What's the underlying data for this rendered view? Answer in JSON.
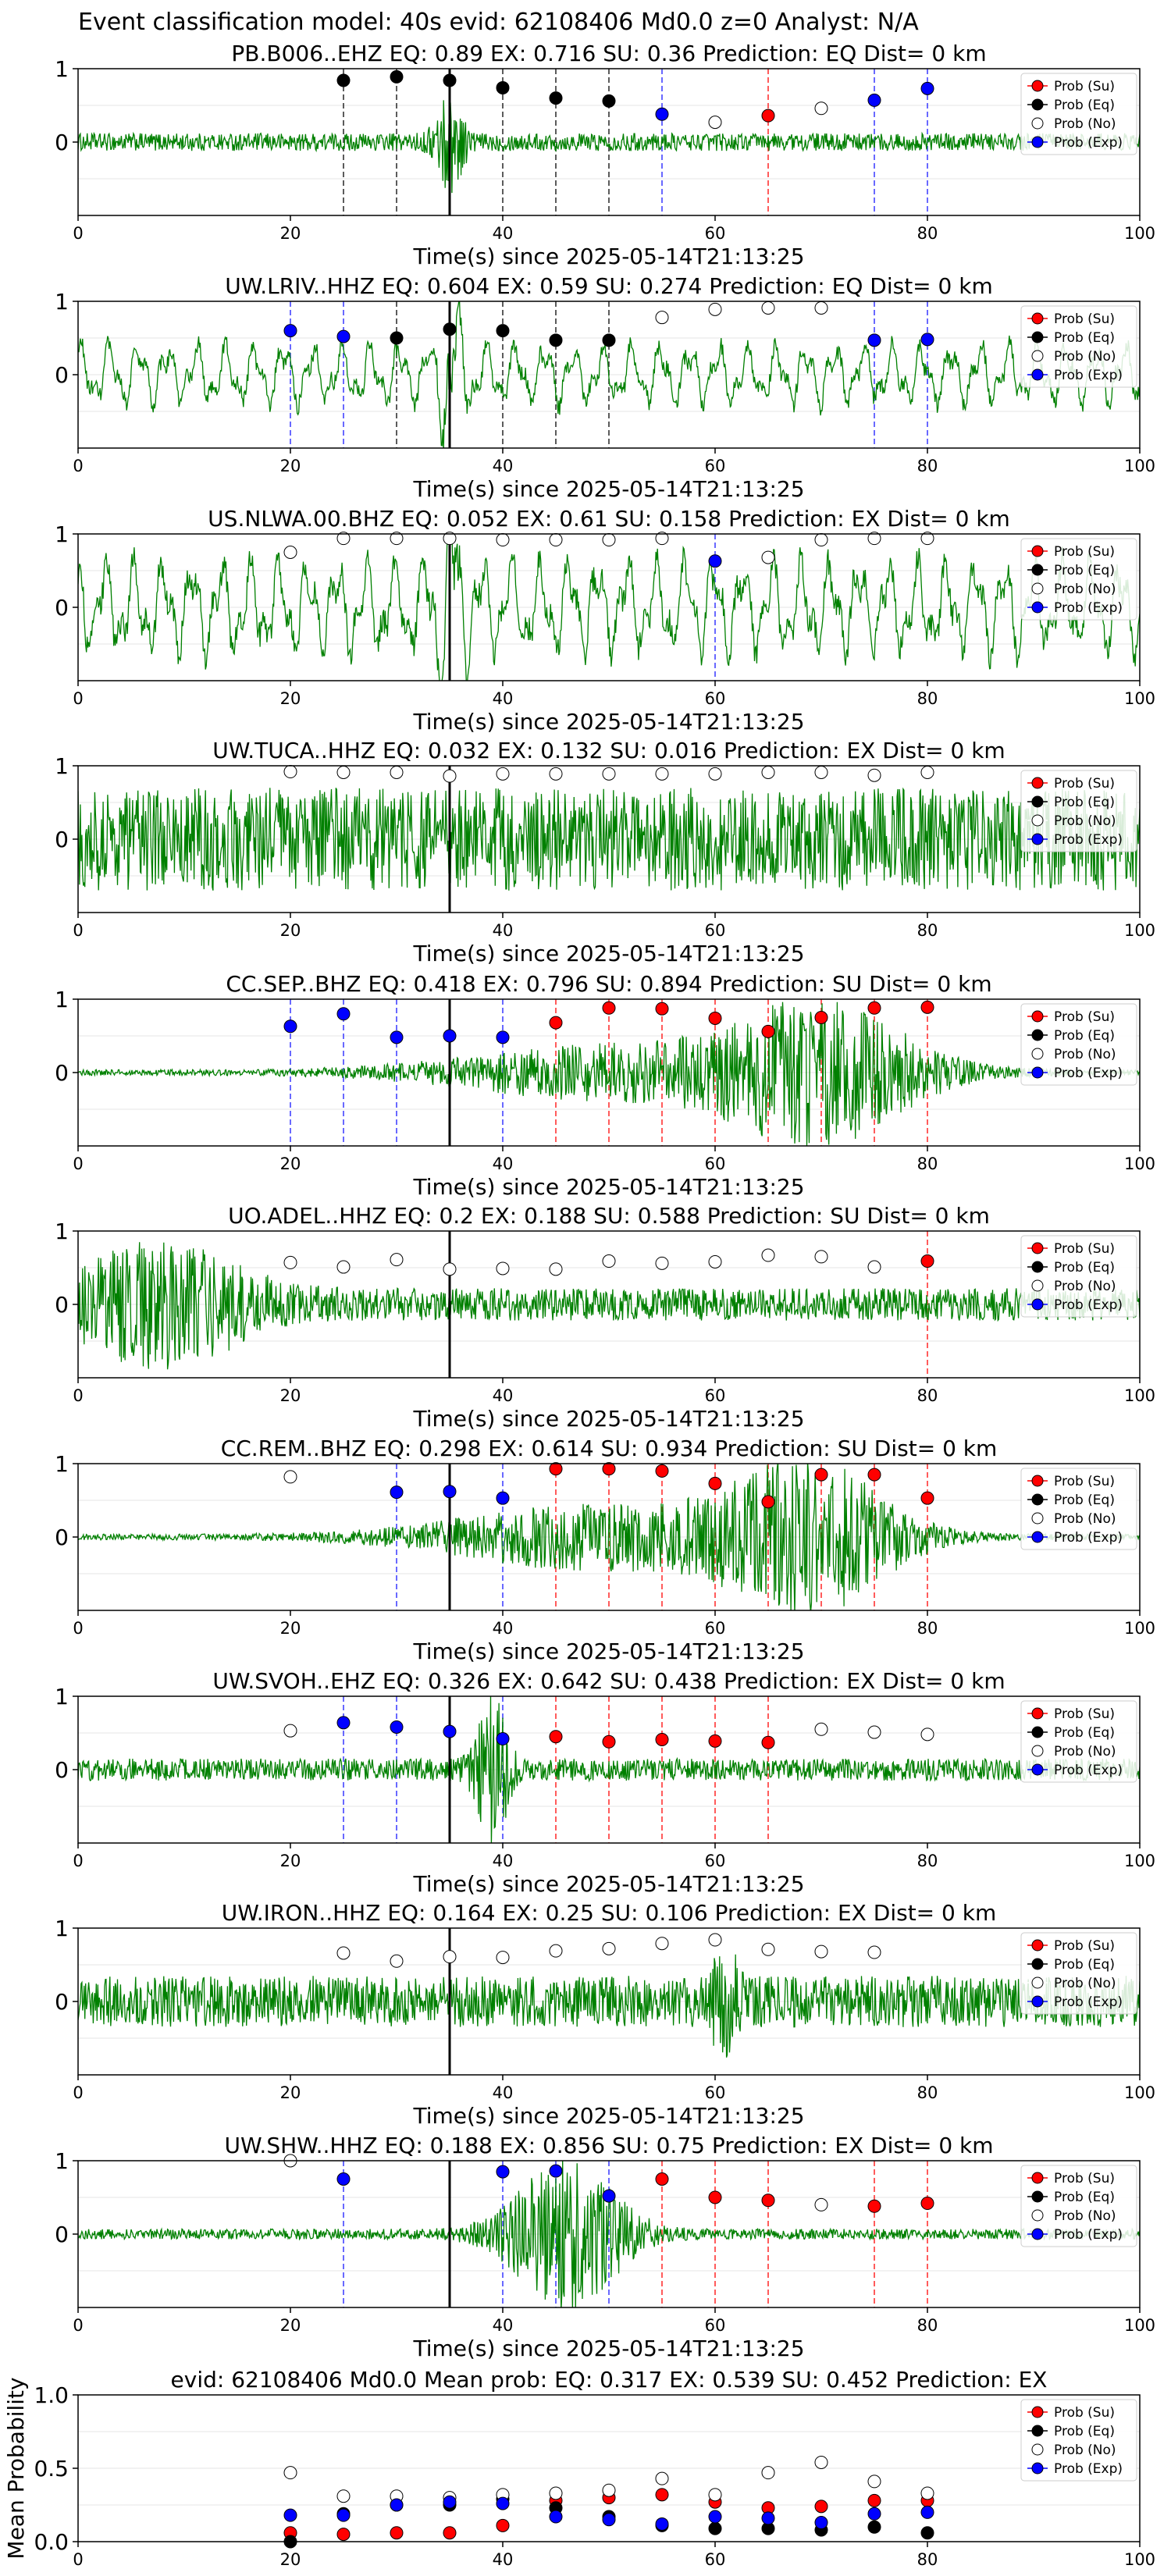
{
  "figure_title": "Event classification model: 40s evid: 62108406 Md0.0 z=0 Analyst: N/A",
  "legend_labels": [
    "Prob (Su)",
    "Prob (Eq)",
    "Prob (No)",
    "Prob (Exp)"
  ],
  "colors": {
    "su": "#ff0000",
    "eq": "#000000",
    "no": "#ffffff",
    "exp": "#0000ff",
    "trace": "#008000"
  },
  "chart_data": [
    {
      "type": "line",
      "station": "PB.B006..EHZ",
      "title": "PB.B006..EHZ   EQ: 0.89  EX: 0.716  SU: 0.36   Prediction: EQ    Dist= 0 km",
      "xlabel": "Time(s) since 2025-05-14T21:13:25",
      "xlim": [
        0,
        100
      ],
      "ylim": [
        -1,
        1
      ],
      "xticks": [
        "0",
        "20",
        "40",
        "60",
        "80",
        "100"
      ],
      "yticks": [
        "0",
        "1"
      ],
      "trace": {
        "style": "small",
        "amp": 0.12,
        "bursts": [
          [
            35,
            1,
            0.6
          ]
        ]
      },
      "markers": [
        {
          "x": 25,
          "y": 0.84,
          "cls": "eq"
        },
        {
          "x": 30,
          "y": 0.89,
          "cls": "eq"
        },
        {
          "x": 35,
          "y": 0.84,
          "cls": "eq"
        },
        {
          "x": 40,
          "y": 0.74,
          "cls": "eq"
        },
        {
          "x": 45,
          "y": 0.6,
          "cls": "eq"
        },
        {
          "x": 50,
          "y": 0.56,
          "cls": "eq"
        },
        {
          "x": 55,
          "y": 0.38,
          "cls": "exp"
        },
        {
          "x": 60,
          "y": 0.27,
          "cls": "no"
        },
        {
          "x": 65,
          "y": 0.36,
          "cls": "su"
        },
        {
          "x": 70,
          "y": 0.46,
          "cls": "no"
        },
        {
          "x": 75,
          "y": 0.57,
          "cls": "exp"
        },
        {
          "x": 80,
          "y": 0.73,
          "cls": "exp"
        }
      ]
    },
    {
      "type": "line",
      "station": "UW.LRIV..HHZ",
      "title": "UW.LRIV..HHZ   EQ: 0.604  EX: 0.59  SU: 0.274   Prediction: EQ    Dist= 0 km",
      "xlabel": "Time(s) since 2025-05-14T21:13:25",
      "xlim": [
        0,
        100
      ],
      "ylim": [
        -1,
        1
      ],
      "xticks": [
        "0",
        "20",
        "40",
        "60",
        "80",
        "100"
      ],
      "yticks": [
        "0",
        "1"
      ],
      "trace": {
        "style": "wavy",
        "amp": 0.45,
        "bursts": [
          [
            35,
            1,
            0.8
          ]
        ]
      },
      "markers": [
        {
          "x": 20,
          "y": 0.6,
          "cls": "exp"
        },
        {
          "x": 25,
          "y": 0.52,
          "cls": "exp"
        },
        {
          "x": 30,
          "y": 0.5,
          "cls": "eq"
        },
        {
          "x": 35,
          "y": 0.62,
          "cls": "eq"
        },
        {
          "x": 40,
          "y": 0.6,
          "cls": "eq"
        },
        {
          "x": 45,
          "y": 0.47,
          "cls": "eq"
        },
        {
          "x": 50,
          "y": 0.47,
          "cls": "eq"
        },
        {
          "x": 55,
          "y": 0.78,
          "cls": "no"
        },
        {
          "x": 60,
          "y": 0.89,
          "cls": "no"
        },
        {
          "x": 65,
          "y": 0.91,
          "cls": "no"
        },
        {
          "x": 70,
          "y": 0.91,
          "cls": "no"
        },
        {
          "x": 75,
          "y": 0.47,
          "cls": "exp"
        },
        {
          "x": 80,
          "y": 0.48,
          "cls": "exp"
        }
      ]
    },
    {
      "type": "line",
      "station": "US.NLWA.00.BHZ",
      "title": "US.NLWA.00.BHZ   EQ: 0.052  EX: 0.61  SU: 0.158   Prediction: EX    Dist= 0 km",
      "xlabel": "Time(s) since 2025-05-14T21:13:25",
      "xlim": [
        0,
        100
      ],
      "ylim": [
        -1,
        1
      ],
      "xticks": [
        "0",
        "20",
        "40",
        "60",
        "80",
        "100"
      ],
      "yticks": [
        "0",
        "1"
      ],
      "trace": {
        "style": "wavy",
        "amp": 0.7,
        "bursts": [
          [
            35,
            1,
            1.0
          ]
        ]
      },
      "markers": [
        {
          "x": 20,
          "y": 0.75,
          "cls": "no"
        },
        {
          "x": 25,
          "y": 0.94,
          "cls": "no"
        },
        {
          "x": 30,
          "y": 0.94,
          "cls": "no"
        },
        {
          "x": 35,
          "y": 0.94,
          "cls": "no"
        },
        {
          "x": 40,
          "y": 0.92,
          "cls": "no"
        },
        {
          "x": 45,
          "y": 0.92,
          "cls": "no"
        },
        {
          "x": 50,
          "y": 0.92,
          "cls": "no"
        },
        {
          "x": 55,
          "y": 0.94,
          "cls": "no"
        },
        {
          "x": 60,
          "y": 0.63,
          "cls": "exp"
        },
        {
          "x": 65,
          "y": 0.68,
          "cls": "no"
        },
        {
          "x": 70,
          "y": 0.92,
          "cls": "no"
        },
        {
          "x": 75,
          "y": 0.94,
          "cls": "no"
        },
        {
          "x": 80,
          "y": 0.94,
          "cls": "no"
        }
      ]
    },
    {
      "type": "line",
      "station": "UW.TUCA..HHZ",
      "title": "UW.TUCA..HHZ   EQ: 0.032  EX: 0.132  SU: 0.016   Prediction: EX    Dist= 0 km",
      "xlabel": "Time(s) since 2025-05-14T21:13:25",
      "xlim": [
        0,
        100
      ],
      "ylim": [
        -1,
        1
      ],
      "xticks": [
        "0",
        "20",
        "40",
        "60",
        "80",
        "100"
      ],
      "yticks": [
        "0",
        "1"
      ],
      "trace": {
        "style": "noisy",
        "amp": 0.7,
        "bursts": []
      },
      "markers": [
        {
          "x": 20,
          "y": 0.92,
          "cls": "no"
        },
        {
          "x": 25,
          "y": 0.91,
          "cls": "no"
        },
        {
          "x": 30,
          "y": 0.91,
          "cls": "no"
        },
        {
          "x": 35,
          "y": 0.86,
          "cls": "no"
        },
        {
          "x": 40,
          "y": 0.89,
          "cls": "no"
        },
        {
          "x": 45,
          "y": 0.89,
          "cls": "no"
        },
        {
          "x": 50,
          "y": 0.89,
          "cls": "no"
        },
        {
          "x": 55,
          "y": 0.89,
          "cls": "no"
        },
        {
          "x": 60,
          "y": 0.89,
          "cls": "no"
        },
        {
          "x": 65,
          "y": 0.91,
          "cls": "no"
        },
        {
          "x": 70,
          "y": 0.91,
          "cls": "no"
        },
        {
          "x": 75,
          "y": 0.87,
          "cls": "no"
        },
        {
          "x": 80,
          "y": 0.91,
          "cls": "no"
        }
      ]
    },
    {
      "type": "line",
      "station": "CC.SEP..BHZ",
      "title": "CC.SEP..BHZ   EQ: 0.418  EX: 0.796  SU: 0.894   Prediction: SU    Dist= 0 km",
      "xlabel": "Time(s) since 2025-05-14T21:13:25",
      "xlim": [
        0,
        100
      ],
      "ylim": [
        -1,
        1
      ],
      "xticks": [
        "0",
        "20",
        "40",
        "60",
        "80",
        "100"
      ],
      "yticks": [
        "0",
        "1"
      ],
      "trace": {
        "style": "small",
        "amp": 0.04,
        "bursts": [
          [
            50,
            12,
            0.35
          ],
          [
            70,
            7,
            0.9
          ]
        ]
      },
      "markers": [
        {
          "x": 20,
          "y": 0.63,
          "cls": "exp"
        },
        {
          "x": 25,
          "y": 0.8,
          "cls": "exp"
        },
        {
          "x": 30,
          "y": 0.48,
          "cls": "exp"
        },
        {
          "x": 35,
          "y": 0.5,
          "cls": "exp"
        },
        {
          "x": 40,
          "y": 0.48,
          "cls": "exp"
        },
        {
          "x": 45,
          "y": 0.68,
          "cls": "su"
        },
        {
          "x": 50,
          "y": 0.88,
          "cls": "su"
        },
        {
          "x": 55,
          "y": 0.87,
          "cls": "su"
        },
        {
          "x": 60,
          "y": 0.74,
          "cls": "su"
        },
        {
          "x": 65,
          "y": 0.56,
          "cls": "su"
        },
        {
          "x": 70,
          "y": 0.75,
          "cls": "su"
        },
        {
          "x": 75,
          "y": 0.88,
          "cls": "su"
        },
        {
          "x": 80,
          "y": 0.89,
          "cls": "su"
        }
      ]
    },
    {
      "type": "line",
      "station": "UO.ADEL..HHZ",
      "title": "UO.ADEL..HHZ   EQ: 0.2  EX: 0.188  SU: 0.588   Prediction: SU    Dist= 0 km",
      "xlabel": "Time(s) since 2025-05-14T21:13:25",
      "xlim": [
        0,
        100
      ],
      "ylim": [
        -1,
        1
      ],
      "xticks": [
        "0",
        "20",
        "40",
        "60",
        "80",
        "100"
      ],
      "yticks": [
        "0",
        "1"
      ],
      "trace": {
        "style": "noisy",
        "amp": 0.22,
        "bursts": [
          [
            8,
            6,
            0.7
          ]
        ]
      },
      "markers": [
        {
          "x": 20,
          "y": 0.57,
          "cls": "no"
        },
        {
          "x": 25,
          "y": 0.51,
          "cls": "no"
        },
        {
          "x": 30,
          "y": 0.61,
          "cls": "no"
        },
        {
          "x": 35,
          "y": 0.48,
          "cls": "no"
        },
        {
          "x": 40,
          "y": 0.49,
          "cls": "no"
        },
        {
          "x": 45,
          "y": 0.48,
          "cls": "no"
        },
        {
          "x": 50,
          "y": 0.59,
          "cls": "no"
        },
        {
          "x": 55,
          "y": 0.56,
          "cls": "no"
        },
        {
          "x": 60,
          "y": 0.58,
          "cls": "no"
        },
        {
          "x": 65,
          "y": 0.67,
          "cls": "no"
        },
        {
          "x": 70,
          "y": 0.65,
          "cls": "no"
        },
        {
          "x": 75,
          "y": 0.51,
          "cls": "no"
        },
        {
          "x": 80,
          "y": 0.59,
          "cls": "su"
        }
      ]
    },
    {
      "type": "line",
      "station": "CC.REM..BHZ",
      "title": "CC.REM..BHZ   EQ: 0.298  EX: 0.614  SU: 0.934   Prediction: SU    Dist= 0 km",
      "xlabel": "Time(s) since 2025-05-14T21:13:25",
      "xlim": [
        0,
        100
      ],
      "ylim": [
        -1,
        1
      ],
      "xticks": [
        "0",
        "20",
        "40",
        "60",
        "80",
        "100"
      ],
      "yticks": [
        "0",
        "1"
      ],
      "trace": {
        "style": "small",
        "amp": 0.04,
        "bursts": [
          [
            50,
            12,
            0.45
          ],
          [
            69,
            6,
            0.95
          ]
        ]
      },
      "markers": [
        {
          "x": 20,
          "y": 0.82,
          "cls": "no"
        },
        {
          "x": 30,
          "y": 0.61,
          "cls": "exp"
        },
        {
          "x": 35,
          "y": 0.62,
          "cls": "exp"
        },
        {
          "x": 40,
          "y": 0.53,
          "cls": "exp"
        },
        {
          "x": 45,
          "y": 0.93,
          "cls": "su"
        },
        {
          "x": 50,
          "y": 0.93,
          "cls": "su"
        },
        {
          "x": 55,
          "y": 0.9,
          "cls": "su"
        },
        {
          "x": 60,
          "y": 0.73,
          "cls": "su"
        },
        {
          "x": 65,
          "y": 0.48,
          "cls": "su"
        },
        {
          "x": 70,
          "y": 0.85,
          "cls": "su"
        },
        {
          "x": 75,
          "y": 0.85,
          "cls": "su"
        },
        {
          "x": 80,
          "y": 0.53,
          "cls": "su"
        }
      ]
    },
    {
      "type": "line",
      "station": "UW.SVOH..EHZ",
      "title": "UW.SVOH..EHZ   EQ: 0.326  EX: 0.642  SU: 0.438   Prediction: EX    Dist= 0 km",
      "xlabel": "Time(s) since 2025-05-14T21:13:25",
      "xlim": [
        0,
        100
      ],
      "ylim": [
        -1,
        1
      ],
      "xticks": [
        "0",
        "20",
        "40",
        "60",
        "80",
        "100"
      ],
      "yticks": [
        "0",
        "1"
      ],
      "trace": {
        "style": "noisy",
        "amp": 0.15,
        "bursts": [
          [
            39,
            1.2,
            0.9
          ]
        ]
      },
      "markers": [
        {
          "x": 20,
          "y": 0.53,
          "cls": "no"
        },
        {
          "x": 25,
          "y": 0.64,
          "cls": "exp"
        },
        {
          "x": 30,
          "y": 0.58,
          "cls": "exp"
        },
        {
          "x": 35,
          "y": 0.52,
          "cls": "exp"
        },
        {
          "x": 40,
          "y": 0.42,
          "cls": "exp"
        },
        {
          "x": 45,
          "y": 0.45,
          "cls": "su"
        },
        {
          "x": 50,
          "y": 0.38,
          "cls": "su"
        },
        {
          "x": 55,
          "y": 0.41,
          "cls": "su"
        },
        {
          "x": 60,
          "y": 0.39,
          "cls": "su"
        },
        {
          "x": 65,
          "y": 0.37,
          "cls": "su"
        },
        {
          "x": 70,
          "y": 0.55,
          "cls": "no"
        },
        {
          "x": 75,
          "y": 0.51,
          "cls": "no"
        },
        {
          "x": 80,
          "y": 0.48,
          "cls": "no"
        }
      ]
    },
    {
      "type": "line",
      "station": "UW.IRON..HHZ",
      "title": "UW.IRON..HHZ   EQ: 0.164  EX: 0.25  SU: 0.106   Prediction: EX    Dist= 0 km",
      "xlabel": "Time(s) since 2025-05-14T21:13:25",
      "xlim": [
        0,
        100
      ],
      "ylim": [
        -1,
        1
      ],
      "xticks": [
        "0",
        "20",
        "40",
        "60",
        "80",
        "100"
      ],
      "yticks": [
        "0",
        "1"
      ],
      "trace": {
        "style": "noisy",
        "amp": 0.35,
        "bursts": [
          [
            61,
            1,
            0.5
          ]
        ]
      },
      "markers": [
        {
          "x": 25,
          "y": 0.66,
          "cls": "no"
        },
        {
          "x": 30,
          "y": 0.55,
          "cls": "no"
        },
        {
          "x": 35,
          "y": 0.61,
          "cls": "no"
        },
        {
          "x": 40,
          "y": 0.6,
          "cls": "no"
        },
        {
          "x": 45,
          "y": 0.69,
          "cls": "no"
        },
        {
          "x": 50,
          "y": 0.72,
          "cls": "no"
        },
        {
          "x": 55,
          "y": 0.79,
          "cls": "no"
        },
        {
          "x": 60,
          "y": 0.84,
          "cls": "no"
        },
        {
          "x": 65,
          "y": 0.71,
          "cls": "no"
        },
        {
          "x": 70,
          "y": 0.68,
          "cls": "no"
        },
        {
          "x": 75,
          "y": 0.67,
          "cls": "no"
        }
      ]
    },
    {
      "type": "line",
      "station": "UW.SHW..HHZ",
      "title": "UW.SHW..HHZ   EQ: 0.188  EX: 0.856  SU: 0.75   Prediction: EX    Dist= 0 km",
      "xlabel": "Time(s) since 2025-05-14T21:13:25",
      "xlim": [
        0,
        100
      ],
      "ylim": [
        -1,
        1
      ],
      "xticks": [
        "0",
        "20",
        "40",
        "60",
        "80",
        "100"
      ],
      "yticks": [
        "0",
        "1"
      ],
      "trace": {
        "style": "small",
        "amp": 0.07,
        "bursts": [
          [
            46,
            4,
            1.0
          ]
        ]
      },
      "markers": [
        {
          "x": 20,
          "y": 1.0,
          "cls": "no"
        },
        {
          "x": 25,
          "y": 0.75,
          "cls": "exp"
        },
        {
          "x": 40,
          "y": 0.85,
          "cls": "exp"
        },
        {
          "x": 45,
          "y": 0.86,
          "cls": "exp"
        },
        {
          "x": 50,
          "y": 0.52,
          "cls": "exp"
        },
        {
          "x": 55,
          "y": 0.75,
          "cls": "su"
        },
        {
          "x": 60,
          "y": 0.5,
          "cls": "su"
        },
        {
          "x": 65,
          "y": 0.46,
          "cls": "su"
        },
        {
          "x": 70,
          "y": 0.4,
          "cls": "no"
        },
        {
          "x": 75,
          "y": 0.38,
          "cls": "su"
        },
        {
          "x": 80,
          "y": 0.42,
          "cls": "su"
        }
      ]
    },
    {
      "type": "scatter",
      "station": "mean",
      "title": "evid: 62108406  Md0.0   Mean prob:   EQ: 0.317  EX: 0.539  SU: 0.452   Prediction: EX",
      "xlabel": "",
      "ylabel": "Mean Probability",
      "xlim": [
        0,
        100
      ],
      "ylim": [
        0,
        1
      ],
      "xticks": [
        "0",
        "20",
        "40",
        "60",
        "80",
        "100"
      ],
      "yticks": [
        "0.0",
        "0.5",
        "1.0"
      ],
      "x": [
        20,
        25,
        30,
        35,
        40,
        45,
        50,
        55,
        60,
        65,
        70,
        75,
        80
      ],
      "series": [
        {
          "name": "Prob (Su)",
          "cls": "su",
          "values": [
            0.06,
            0.05,
            0.06,
            0.06,
            0.11,
            0.28,
            0.3,
            0.32,
            0.27,
            0.23,
            0.24,
            0.28,
            0.28
          ]
        },
        {
          "name": "Prob (Eq)",
          "cls": "eq",
          "values": [
            0.0,
            0.19,
            0.25,
            0.25,
            0.29,
            0.23,
            0.17,
            0.11,
            0.09,
            0.09,
            0.08,
            0.1,
            0.06
          ]
        },
        {
          "name": "Prob (No)",
          "cls": "no",
          "values": [
            0.47,
            0.31,
            0.31,
            0.3,
            0.32,
            0.33,
            0.35,
            0.43,
            0.32,
            0.47,
            0.54,
            0.41,
            0.33
          ]
        },
        {
          "name": "Prob (Exp)",
          "cls": "exp",
          "values": [
            0.18,
            0.18,
            0.25,
            0.27,
            0.26,
            0.17,
            0.15,
            0.12,
            0.17,
            0.16,
            0.13,
            0.19,
            0.2
          ]
        }
      ]
    }
  ]
}
